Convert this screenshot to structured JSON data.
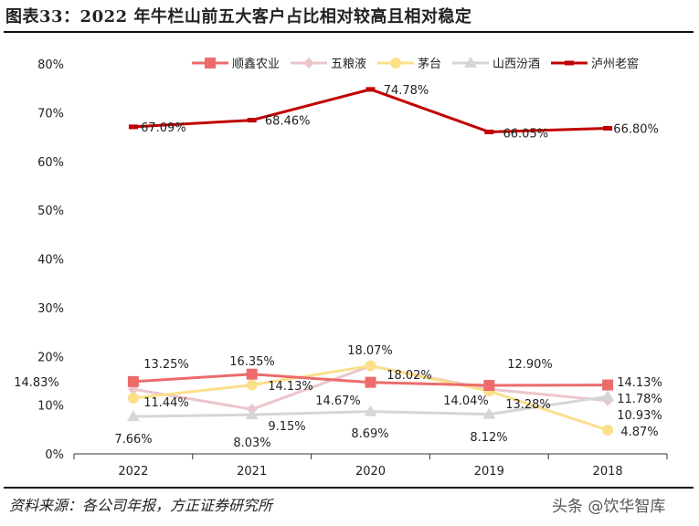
{
  "title": "图表33：2022 年牛栏山前五大客户占比相对较高且相对稳定",
  "source": "资料来源：各公司年报，方正证券研究所",
  "watermark": "头条 @饮华智库",
  "chart_data": {
    "type": "line",
    "categories": [
      "2022",
      "2021",
      "2020",
      "2019",
      "2018"
    ],
    "ylim": [
      0,
      80
    ],
    "yticks": [
      "0%",
      "10%",
      "20%",
      "30%",
      "40%",
      "50%",
      "60%",
      "70%",
      "80%"
    ],
    "legend_position": "top",
    "series": [
      {
        "name": "顺鑫农业",
        "color": "#EC6B6B",
        "marker": "square",
        "values": [
          14.83,
          16.35,
          14.67,
          14.04,
          14.13
        ],
        "labels": [
          "14.83%",
          "16.35%",
          "14.67%",
          "14.04%",
          "14.13%"
        ]
      },
      {
        "name": "五粮液",
        "color": "#EBC6CB",
        "marker": "diamond",
        "values": [
          13.25,
          9.15,
          18.02,
          13.28,
          10.93
        ],
        "labels": [
          "13.25%",
          "9.15%",
          "18.02%",
          "13.28%",
          "10.93%"
        ]
      },
      {
        "name": "茅台",
        "color": "#FBE08A",
        "marker": "circle",
        "values": [
          11.44,
          14.13,
          18.07,
          12.9,
          4.87
        ],
        "labels": [
          "11.44%",
          "14.13%",
          "18.07%",
          "12.90%",
          "4.87%"
        ]
      },
      {
        "name": "山西汾酒",
        "color": "#D6D6D6",
        "marker": "triangle",
        "values": [
          7.66,
          8.03,
          8.69,
          8.12,
          11.78
        ],
        "labels": [
          "7.66%",
          "8.03%",
          "8.69%",
          "8.12%",
          "11.78%"
        ]
      },
      {
        "name": "泸州老窖",
        "color": "#C00000",
        "marker": "dash",
        "values": [
          67.09,
          68.46,
          74.78,
          66.05,
          66.8
        ],
        "labels": [
          "67.09%",
          "68.46%",
          "74.78%",
          "66.05%",
          "66.80%"
        ]
      }
    ]
  }
}
